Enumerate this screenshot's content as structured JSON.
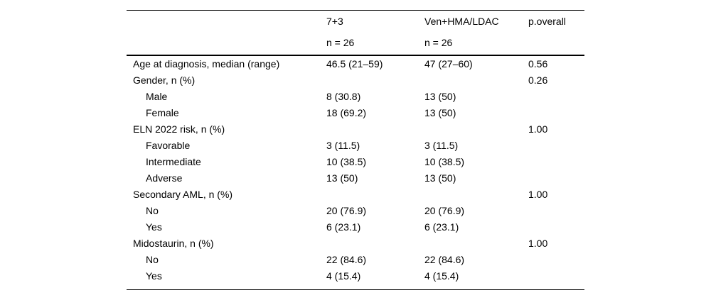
{
  "table": {
    "header": {
      "group1": {
        "title": "7+3",
        "n": "n = 26"
      },
      "group2": {
        "title": "Ven+HMA/LDAC",
        "n": "n = 26"
      },
      "p_label": "p.overall"
    },
    "rows": [
      {
        "label": "Age at diagnosis, median (range)",
        "indent": false,
        "v1": "46.5 (21–59)",
        "v2": "47 (27–60)",
        "p": "0.56"
      },
      {
        "label": "Gender, n (%)",
        "indent": false,
        "v1": "",
        "v2": "",
        "p": "0.26"
      },
      {
        "label": "Male",
        "indent": true,
        "v1": "8 (30.8)",
        "v2": "13 (50)",
        "p": ""
      },
      {
        "label": "Female",
        "indent": true,
        "v1": "18 (69.2)",
        "v2": "13 (50)",
        "p": ""
      },
      {
        "label": "ELN 2022 risk, n (%)",
        "indent": false,
        "v1": "",
        "v2": "",
        "p": "1.00"
      },
      {
        "label": "Favorable",
        "indent": true,
        "v1": "3 (11.5)",
        "v2": "3 (11.5)",
        "p": ""
      },
      {
        "label": "Intermediate",
        "indent": true,
        "v1": "10 (38.5)",
        "v2": "10 (38.5)",
        "p": ""
      },
      {
        "label": "Adverse",
        "indent": true,
        "v1": "13 (50)",
        "v2": "13 (50)",
        "p": ""
      },
      {
        "label": "Secondary AML, n (%)",
        "indent": false,
        "v1": "",
        "v2": "",
        "p": "1.00"
      },
      {
        "label": "No",
        "indent": true,
        "v1": "20 (76.9)",
        "v2": "20 (76.9)",
        "p": ""
      },
      {
        "label": "Yes",
        "indent": true,
        "v1": "6 (23.1)",
        "v2": "6 (23.1)",
        "p": ""
      },
      {
        "label": "Midostaurin, n (%)",
        "indent": false,
        "v1": "",
        "v2": "",
        "p": "1.00"
      },
      {
        "label": "No",
        "indent": true,
        "v1": "22 (84.6)",
        "v2": "22 (84.6)",
        "p": ""
      },
      {
        "label": "Yes",
        "indent": true,
        "v1": "4 (15.4)",
        "v2": "4 (15.4)",
        "p": ""
      }
    ],
    "colors": {
      "text": "#000000",
      "rule": "#000000",
      "background": "#ffffff"
    }
  }
}
